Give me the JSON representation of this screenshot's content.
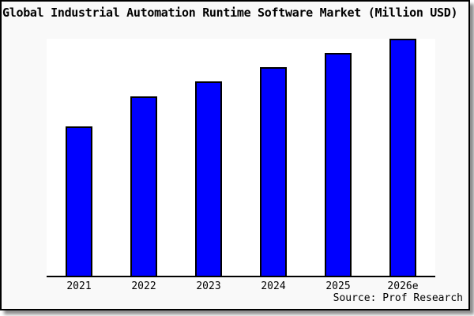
{
  "colors": {
    "bar_fill": "#0000ff",
    "bar_border": "#000000",
    "card_background": "#f9f9f9",
    "plot_background": "#ffffff",
    "axis_line": "#000000",
    "text": "#000000"
  },
  "chart_data": {
    "type": "bar",
    "title": "Global Industrial Automation Runtime Software Market (Million USD)",
    "categories": [
      "2021",
      "2022",
      "2023",
      "2024",
      "2025",
      "2026e"
    ],
    "values": [
      63,
      75.5,
      82,
      88,
      94,
      100
    ],
    "values_note": "y-axis has no tick labels or gridlines; values are relative bar heights estimated from pixels with the tallest (2026e) bar = 100",
    "xlabel": "",
    "ylabel": "",
    "ylim": [
      0,
      100
    ],
    "grid": false,
    "legend": false,
    "bar_color": "#0000ff",
    "bar_border_color": "#000000",
    "source": "Source: Prof Research"
  }
}
